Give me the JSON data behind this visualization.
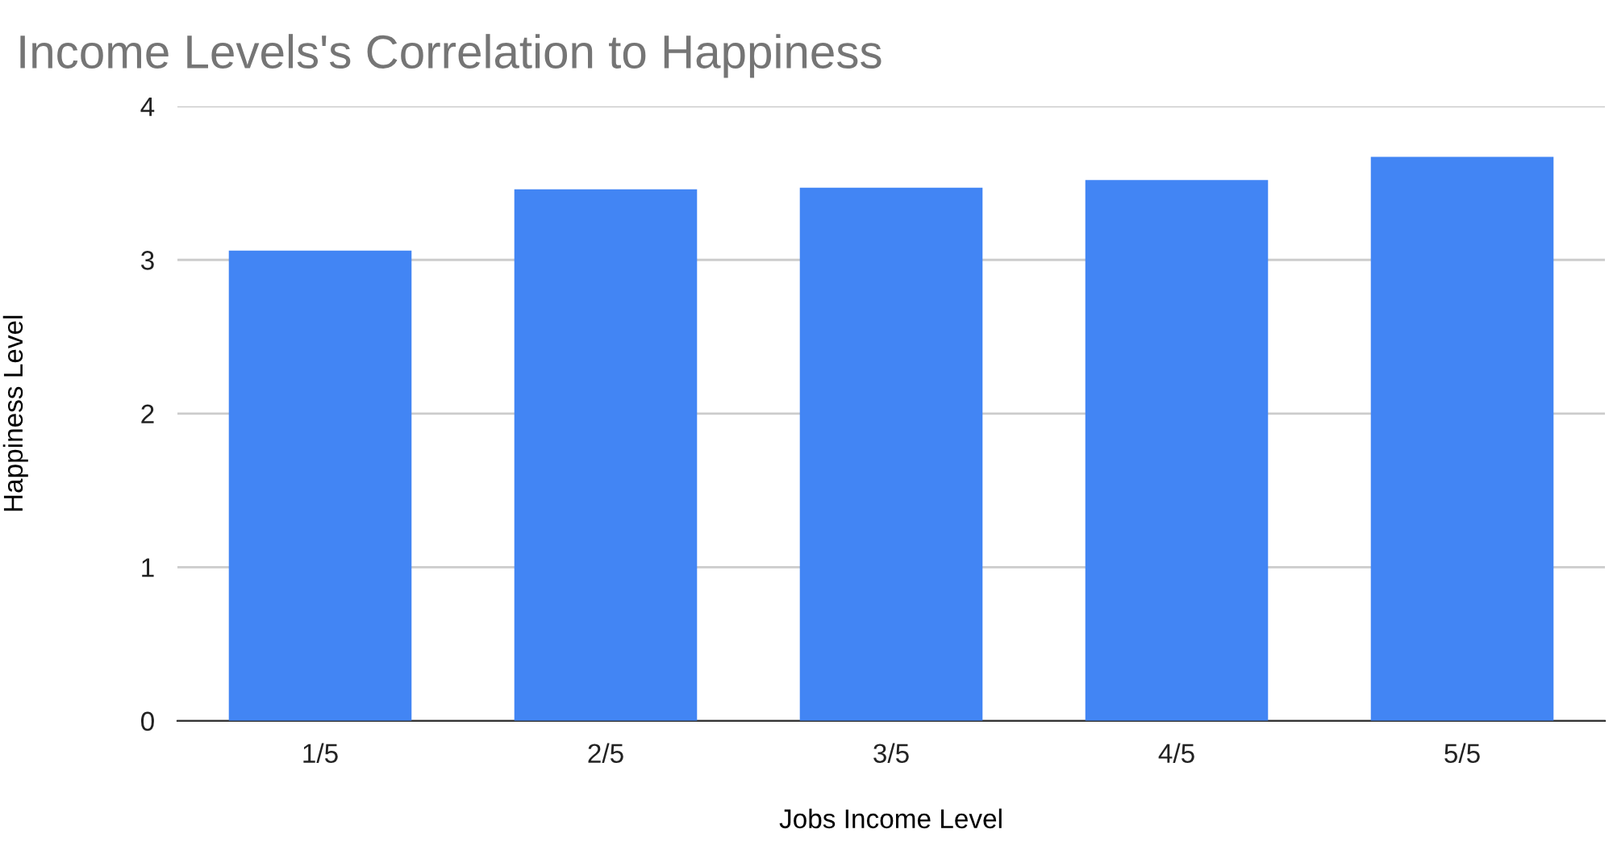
{
  "chart_data": {
    "type": "bar",
    "title": "Income Levels's Correlation to Happiness",
    "xlabel": "Jobs Income Level",
    "ylabel": "Happiness Level",
    "categories": [
      "1/5",
      "2/5",
      "3/5",
      "4/5",
      "5/5"
    ],
    "series": [
      {
        "color": "#4285f4",
        "values": [
          3.06,
          3.46,
          3.47,
          3.52,
          3.67
        ]
      }
    ],
    "ylim": [
      0,
      4
    ],
    "yticks": [
      0,
      1,
      2,
      3,
      4
    ],
    "grid": "y",
    "legend": false
  }
}
